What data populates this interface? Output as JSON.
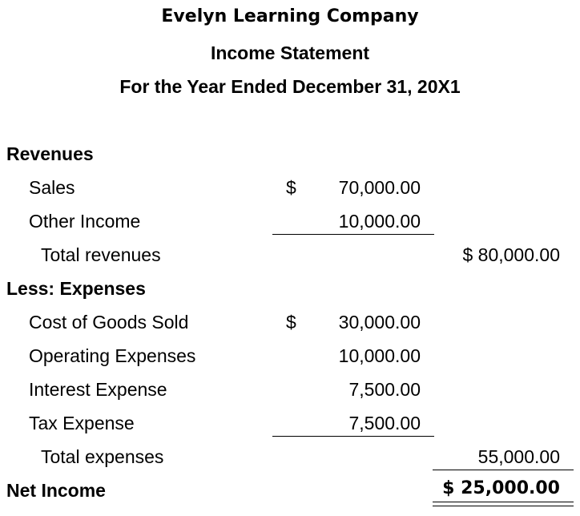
{
  "header": {
    "company": "Evelyn Learning Company",
    "title": "Income Statement",
    "period": "For the Year Ended December 31, 20X1"
  },
  "revenues": {
    "heading": "Revenues",
    "items": [
      {
        "label": "Sales",
        "currency": "$",
        "amount": "70,000.00"
      },
      {
        "label": "Other Income",
        "currency": "",
        "amount": "10,000.00"
      }
    ],
    "total_label": "Total revenues",
    "total_amount": "$ 80,000.00"
  },
  "expenses": {
    "heading": "Less: Expenses",
    "items": [
      {
        "label": "Cost of Goods Sold",
        "currency": "$",
        "amount": "30,000.00"
      },
      {
        "label": "Operating Expenses",
        "currency": "",
        "amount": "10,000.00"
      },
      {
        "label": "Interest Expense",
        "currency": "",
        "amount": "7,500.00"
      },
      {
        "label": "Tax Expense",
        "currency": "",
        "amount": "7,500.00"
      }
    ],
    "total_label": "Total expenses",
    "total_amount": "55,000.00"
  },
  "net_income": {
    "label": "Net Income",
    "amount": "$ 25,000.00"
  }
}
